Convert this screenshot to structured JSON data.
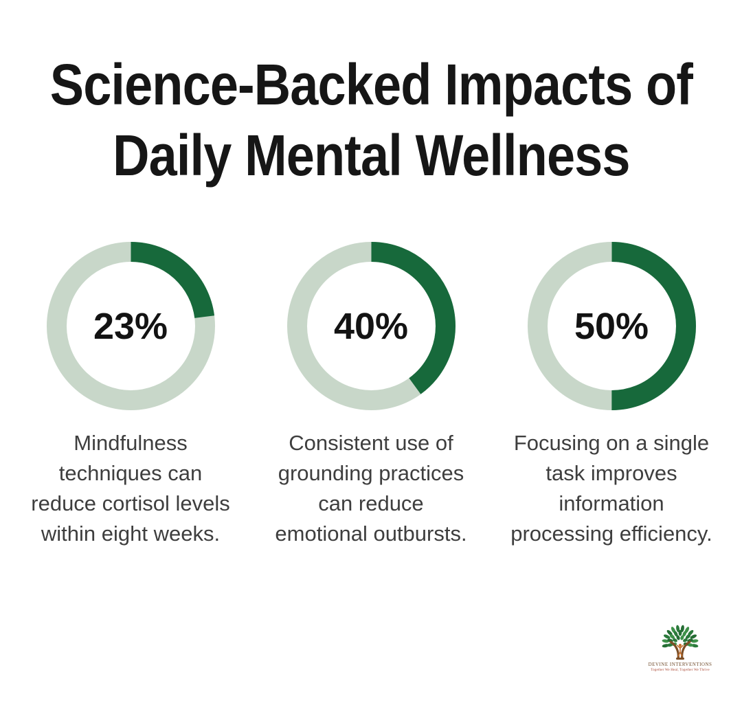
{
  "title": "Science-Backed Impacts of Daily Mental Wellness",
  "title_display": "Science-Backed Impacts of\nDaily Mental Wellness",
  "colors": {
    "progress_green": "#17693B",
    "track_sage": "#C8D7C9",
    "title_text": "#161616",
    "caption_text": "#3E3E3E",
    "brand_brown": "#6F4B2B",
    "tagline_red": "#A8432F"
  },
  "stats": [
    {
      "percent": 23,
      "label": "23%",
      "caption": "Mindfulness\ntechniques can\nreduce cortisol levels\nwithin eight weeks."
    },
    {
      "percent": 40,
      "label": "40%",
      "caption": "Consistent use of\ngrounding practices\ncan reduce\nemotional outbursts."
    },
    {
      "percent": 50,
      "label": "50%",
      "caption": "Focusing on a single\ntask improves\ninformation\nprocessing efficiency."
    }
  ],
  "logo": {
    "name": "DEVINE INTERVENTIONS",
    "tagline": "Together We Heal, Together We Thrive"
  },
  "chart_data": [
    {
      "type": "pie",
      "subtype": "donut",
      "values": [
        23,
        77
      ],
      "labels": [
        "highlighted",
        "remainder"
      ],
      "center_label": "23%",
      "caption": "Mindfulness techniques can reduce cortisol levels within eight weeks.",
      "colors": [
        "#17693B",
        "#C8D7C9"
      ],
      "start_angle_deg": 0,
      "direction": "clockwise"
    },
    {
      "type": "pie",
      "subtype": "donut",
      "values": [
        40,
        60
      ],
      "labels": [
        "highlighted",
        "remainder"
      ],
      "center_label": "40%",
      "caption": "Consistent use of grounding practices can reduce emotional outbursts.",
      "colors": [
        "#17693B",
        "#C8D7C9"
      ],
      "start_angle_deg": 0,
      "direction": "clockwise"
    },
    {
      "type": "pie",
      "subtype": "donut",
      "values": [
        50,
        50
      ],
      "labels": [
        "highlighted",
        "remainder"
      ],
      "center_label": "50%",
      "caption": "Focusing on a single task improves information processing efficiency.",
      "colors": [
        "#17693B",
        "#C8D7C9"
      ],
      "start_angle_deg": 0,
      "direction": "clockwise"
    }
  ]
}
